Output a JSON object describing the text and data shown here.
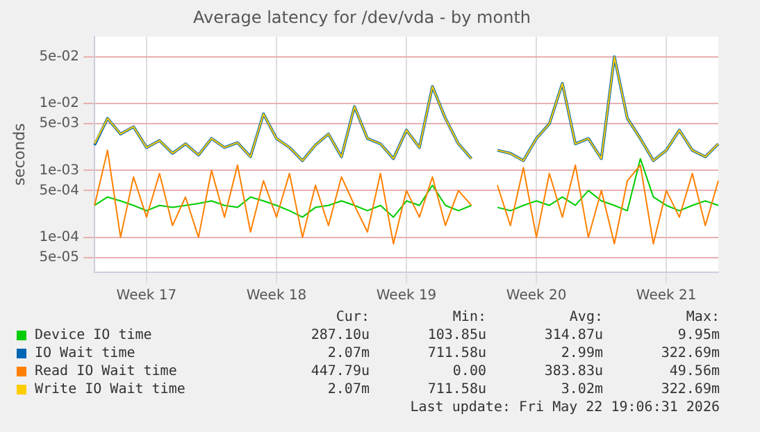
{
  "chart_data": {
    "type": "line",
    "title": "Average latency for /dev/vda - by month",
    "ylabel": "seconds",
    "log": "y",
    "grid": true,
    "legend": "bottom",
    "marker": "none",
    "line_style": "solid",
    "categories": [
      null,
      null,
      null,
      null,
      "Week 17",
      null,
      null,
      null,
      null,
      null,
      null,
      null,
      null,
      null,
      "Week 18",
      null,
      null,
      null,
      null,
      null,
      null,
      null,
      null,
      null,
      "Week 19",
      null,
      null,
      null,
      null,
      null,
      null,
      null,
      null,
      null,
      "Week 20",
      null,
      null,
      null,
      null,
      null,
      null,
      null,
      null,
      null,
      "Week 21",
      null,
      null,
      null,
      null
    ],
    "ylim": [
      3e-05,
      0.1
    ],
    "yticks": [
      {
        "value": 5e-05,
        "label": "5e-05"
      },
      {
        "value": 0.0001,
        "label": "1e-04"
      },
      {
        "value": 0.0005,
        "label": "5e-04"
      },
      {
        "value": 0.001,
        "label": "1e-03"
      },
      {
        "value": 0.005,
        "label": "5e-03"
      },
      {
        "value": 0.01,
        "label": "1e-02"
      },
      {
        "value": 0.05,
        "label": "5e-02"
      }
    ],
    "series": [
      {
        "name": "Device IO time",
        "color": "#00cc00",
        "values": [
          0.0003,
          0.0004,
          0.00035,
          0.0003,
          0.00025,
          0.0003,
          0.00028,
          0.0003,
          0.00032,
          0.00035,
          0.0003,
          0.00028,
          0.0004,
          0.00035,
          0.0003,
          0.00025,
          0.0002,
          0.00028,
          0.0003,
          0.00035,
          0.0003,
          0.00025,
          0.0003,
          0.0002,
          0.00035,
          0.0003,
          0.0006,
          0.0003,
          0.00025,
          0.0003,
          null,
          0.00028,
          0.00025,
          0.0003,
          0.00035,
          0.0003,
          0.0004,
          0.0003,
          0.0005,
          0.00035,
          0.0003,
          0.00025,
          0.0015,
          0.0004,
          0.0003,
          0.00025,
          0.0003,
          0.00035,
          0.0003
        ]
      },
      {
        "name": "IO Wait time",
        "color": "#0066b3",
        "values": [
          0.0024,
          0.006,
          0.0035,
          0.0045,
          0.0022,
          0.0028,
          0.0018,
          0.0025,
          0.0017,
          0.003,
          0.0022,
          0.0026,
          0.0016,
          0.007,
          0.003,
          0.0022,
          0.0014,
          0.0024,
          0.0035,
          0.0016,
          0.009,
          0.003,
          0.0025,
          0.0015,
          0.004,
          0.0022,
          0.018,
          0.006,
          0.0025,
          0.0015,
          null,
          0.002,
          0.0018,
          0.0014,
          0.003,
          0.005,
          0.02,
          0.0025,
          0.003,
          0.0015,
          0.05,
          0.006,
          0.003,
          0.0014,
          0.002,
          0.004,
          0.002,
          0.0016,
          0.0025
        ]
      },
      {
        "name": "Read IO Wait time",
        "color": "#ff8000",
        "values": [
          0.0003,
          0.002,
          0.0001,
          0.0008,
          0.0002,
          0.0009,
          0.00015,
          0.0004,
          0.0001,
          0.001,
          0.0002,
          0.0012,
          0.00012,
          0.0007,
          0.0002,
          0.0009,
          0.0001,
          0.0006,
          0.00015,
          0.0008,
          0.0003,
          0.00012,
          0.0009,
          8e-05,
          0.0005,
          0.0002,
          0.0008,
          0.00015,
          0.0005,
          0.0003,
          null,
          0.0006,
          0.00015,
          0.0011,
          0.0001,
          0.0009,
          0.0002,
          0.0012,
          0.0001,
          0.0005,
          8e-05,
          0.0007,
          0.0012,
          8e-05,
          0.0005,
          0.0002,
          0.0009,
          0.00015,
          0.0007
        ]
      },
      {
        "name": "Write IO Wait time",
        "color": "#ffcc00",
        "values": [
          0.0025,
          0.006,
          0.0035,
          0.0045,
          0.0022,
          0.0028,
          0.0018,
          0.0025,
          0.0017,
          0.003,
          0.0022,
          0.0026,
          0.0016,
          0.007,
          0.003,
          0.0022,
          0.0014,
          0.0024,
          0.0035,
          0.0016,
          0.009,
          0.003,
          0.0025,
          0.0015,
          0.004,
          0.0022,
          0.018,
          0.006,
          0.0025,
          0.0015,
          null,
          0.002,
          0.0018,
          0.0014,
          0.003,
          0.005,
          0.02,
          0.0025,
          0.003,
          0.0015,
          0.05,
          0.006,
          0.003,
          0.0014,
          0.002,
          0.004,
          0.002,
          0.0016,
          0.0025
        ]
      }
    ],
    "annotations": [
      "Cur:",
      "Min:",
      "Avg:",
      "Max:",
      "287.10u",
      "103.85u",
      "314.87u",
      "9.95m",
      "2.07m",
      "711.58u",
      "2.99m",
      "322.69m",
      "447.79u",
      "0.00",
      "383.83u",
      "49.56m",
      "2.07m",
      "711.58u",
      "3.02m",
      "322.69m",
      "Last update: Fri May 22 19:06:31 2026"
    ]
  }
}
